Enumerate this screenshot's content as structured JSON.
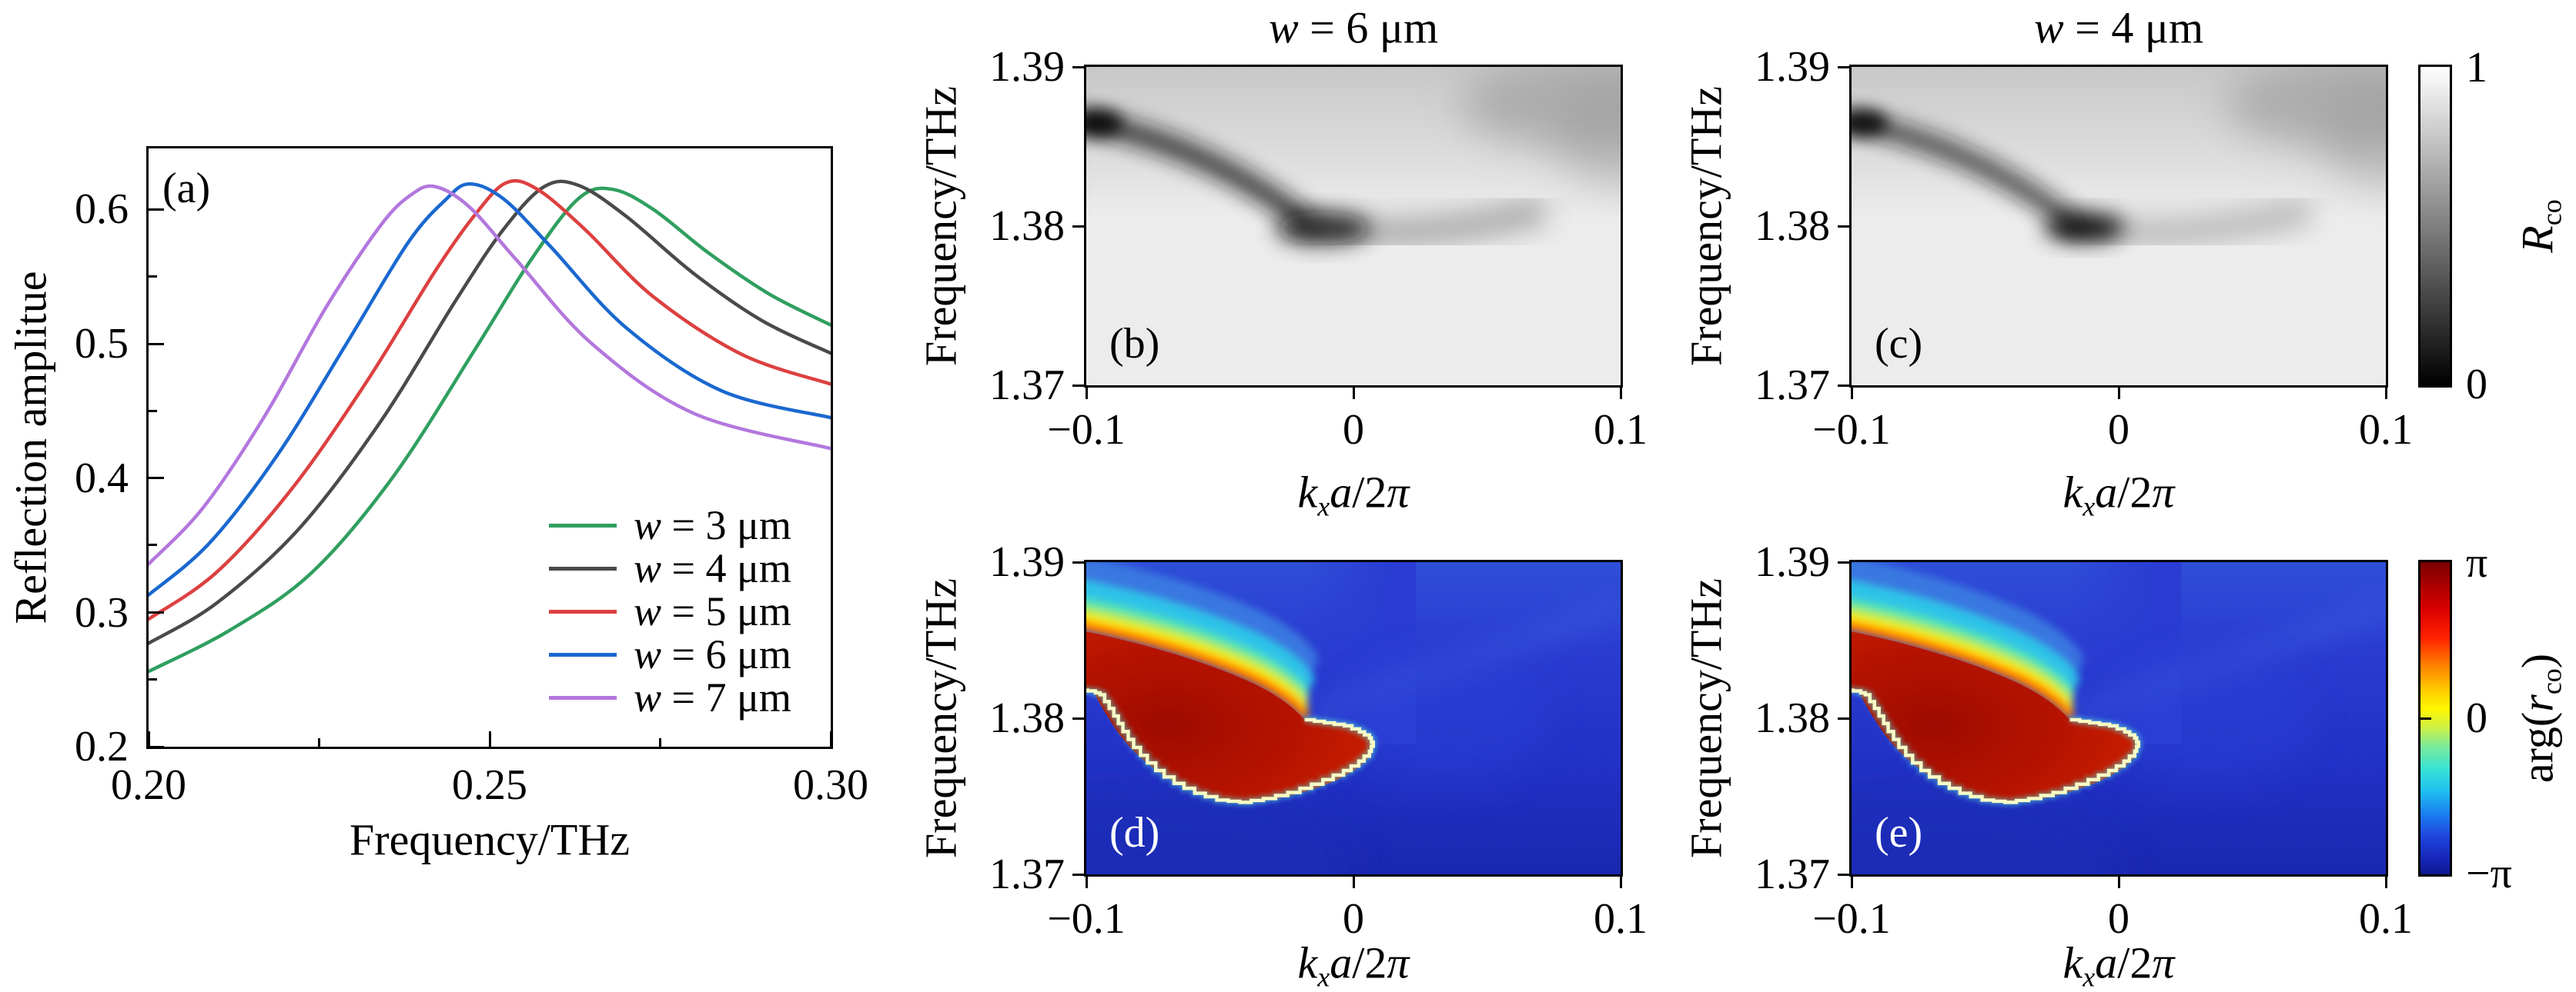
{
  "figure": {
    "panels": {
      "a": {
        "label": "(a)",
        "ylabel": "Reflection amplitue",
        "xlabel": "Frequency/THz",
        "axes": {
          "x": [
            {
              "f": 0,
              "t": "0.20"
            },
            {
              "f": 0.5,
              "t": "0.25"
            },
            {
              "f": 1,
              "t": "0.30"
            }
          ],
          "xm": [
            0.25,
            0.75
          ],
          "y": [
            {
              "f": 0.102,
              "t": "0.6"
            },
            {
              "f": 0.327,
              "t": "0.5"
            },
            {
              "f": 0.551,
              "t": "0.4"
            },
            {
              "f": 0.776,
              "t": "0.3"
            },
            {
              "f": 1,
              "t": "0.2"
            }
          ],
          "ym": [
            0.214,
            0.439,
            0.663,
            0.888
          ]
        },
        "legend": [
          {
            "parts": [
              {
                "t": "w",
                "s": "i"
              },
              {
                "t": " = 3 μm",
                "s": "r"
              }
            ]
          },
          {
            "parts": [
              {
                "t": "w",
                "s": "i"
              },
              {
                "t": " = 4 μm",
                "s": "r"
              }
            ]
          },
          {
            "parts": [
              {
                "t": "w",
                "s": "i"
              },
              {
                "t": " = 5 μm",
                "s": "r"
              }
            ]
          },
          {
            "parts": [
              {
                "t": "w",
                "s": "i"
              },
              {
                "t": " = 6 μm",
                "s": "r"
              }
            ]
          },
          {
            "parts": [
              {
                "t": "w",
                "s": "i"
              },
              {
                "t": " = 7 μm",
                "s": "r"
              }
            ]
          }
        ]
      },
      "b": {
        "label": "(b)",
        "title_parts": [
          {
            "t": "w",
            "s": "i"
          },
          {
            "t": " = 6 μm",
            "s": "r"
          }
        ],
        "ylabel": "Frequency/THz",
        "xlabel_parts": [
          {
            "t": "k",
            "s": "i"
          },
          {
            "t": "x",
            "s": "subi"
          },
          {
            "t": "a",
            "s": "i"
          },
          {
            "t": "/2",
            "s": "r"
          },
          {
            "t": "π",
            "s": "i"
          }
        ],
        "axes": {
          "x": [
            {
              "f": 0,
              "t": "−0.1"
            },
            {
              "f": 0.5,
              "t": "0"
            },
            {
              "f": 1,
              "t": "0.1"
            }
          ],
          "y": [
            {
              "f": 0,
              "t": "1.39"
            },
            {
              "f": 0.5,
              "t": "1.38"
            },
            {
              "f": 1,
              "t": "1.37"
            }
          ]
        }
      },
      "c": {
        "label": "(c)",
        "title_parts": [
          {
            "t": "w",
            "s": "i"
          },
          {
            "t": " = 4 μm",
            "s": "r"
          }
        ],
        "ylabel": "Frequency/THz",
        "xlabel_parts": [
          {
            "t": "k",
            "s": "i"
          },
          {
            "t": "x",
            "s": "subi"
          },
          {
            "t": "a",
            "s": "i"
          },
          {
            "t": "/2",
            "s": "r"
          },
          {
            "t": "π",
            "s": "i"
          }
        ],
        "axes": {
          "x": [
            {
              "f": 0,
              "t": "−0.1"
            },
            {
              "f": 0.5,
              "t": "0"
            },
            {
              "f": 1,
              "t": "0.1"
            }
          ],
          "y": [
            {
              "f": 0,
              "t": "1.39"
            },
            {
              "f": 0.5,
              "t": "1.38"
            },
            {
              "f": 1,
              "t": "1.37"
            }
          ]
        }
      },
      "d": {
        "label": "(d)",
        "ylabel": "Frequency/THz",
        "xlabel_parts": [
          {
            "t": "k",
            "s": "i"
          },
          {
            "t": "x",
            "s": "subi"
          },
          {
            "t": "a",
            "s": "i"
          },
          {
            "t": "/2",
            "s": "r"
          },
          {
            "t": "π",
            "s": "i"
          }
        ],
        "axes": {
          "x": [
            {
              "f": 0,
              "t": "−0.1"
            },
            {
              "f": 0.5,
              "t": "0"
            },
            {
              "f": 1,
              "t": "0.1"
            }
          ],
          "y": [
            {
              "f": 0,
              "t": "1.39"
            },
            {
              "f": 0.5,
              "t": "1.38"
            },
            {
              "f": 1,
              "t": "1.37"
            }
          ]
        }
      },
      "e": {
        "label": "(e)",
        "ylabel": "Frequency/THz",
        "xlabel_parts": [
          {
            "t": "k",
            "s": "i"
          },
          {
            "t": "x",
            "s": "subi"
          },
          {
            "t": "a",
            "s": "i"
          },
          {
            "t": "/2",
            "s": "r"
          },
          {
            "t": "π",
            "s": "i"
          }
        ],
        "axes": {
          "x": [
            {
              "f": 0,
              "t": "−0.1"
            },
            {
              "f": 0.5,
              "t": "0"
            },
            {
              "f": 1,
              "t": "0.1"
            }
          ],
          "y": [
            {
              "f": 0,
              "t": "1.39"
            },
            {
              "f": 0.5,
              "t": "1.38"
            },
            {
              "f": 1,
              "t": "1.37"
            }
          ]
        }
      }
    },
    "colorbars": [
      {
        "ticks": [
          "1",
          "0"
        ],
        "label_parts": [
          {
            "t": "R",
            "s": "i"
          },
          {
            "t": "co",
            "s": "subr"
          }
        ]
      },
      {
        "ticks": [
          "π",
          "0",
          "−π"
        ],
        "label_parts": [
          {
            "t": "arg(",
            "s": "r"
          },
          {
            "t": "r",
            "s": "i"
          },
          {
            "t": "co",
            "s": "subr"
          },
          {
            "t": ")",
            "s": "r"
          }
        ]
      }
    ]
  },
  "chart_data": [
    {
      "id": "a",
      "type": "line",
      "xlabel": "Frequency/THz",
      "ylabel": "Reflection amplitue",
      "xlim": [
        0.2,
        0.3
      ],
      "ylim": [
        0.2,
        0.645
      ],
      "x_ticks": [
        0.2,
        0.25,
        0.3
      ],
      "y_ticks": [
        0.2,
        0.3,
        0.4,
        0.5,
        0.6
      ],
      "legend_position": "lower right",
      "series": [
        {
          "name": "w = 3 μm",
          "color": "#2f9f5f",
          "points": [
            [
              0.2,
              0.256
            ],
            [
              0.212,
              0.287
            ],
            [
              0.224,
              0.33
            ],
            [
              0.236,
              0.402
            ],
            [
              0.248,
              0.497
            ],
            [
              0.256,
              0.562
            ],
            [
              0.263,
              0.608
            ],
            [
              0.268,
              0.615
            ],
            [
              0.274,
              0.6
            ],
            [
              0.282,
              0.568
            ],
            [
              0.291,
              0.537
            ],
            [
              0.3,
              0.514
            ]
          ]
        },
        {
          "name": "w = 4 μm",
          "color": "#4a4a4a",
          "points": [
            [
              0.2,
              0.277
            ],
            [
              0.21,
              0.307
            ],
            [
              0.222,
              0.362
            ],
            [
              0.234,
              0.442
            ],
            [
              0.245,
              0.532
            ],
            [
              0.252,
              0.585
            ],
            [
              0.258,
              0.617
            ],
            [
              0.263,
              0.618
            ],
            [
              0.27,
              0.595
            ],
            [
              0.28,
              0.552
            ],
            [
              0.29,
              0.517
            ],
            [
              0.3,
              0.493
            ]
          ]
        },
        {
          "name": "w = 5 μm",
          "color": "#dd4040",
          "points": [
            [
              0.2,
              0.295
            ],
            [
              0.21,
              0.33
            ],
            [
              0.221,
              0.392
            ],
            [
              0.232,
              0.472
            ],
            [
              0.242,
              0.554
            ],
            [
              0.248,
              0.597
            ],
            [
              0.2525,
              0.62
            ],
            [
              0.257,
              0.615
            ],
            [
              0.264,
              0.585
            ],
            [
              0.274,
              0.535
            ],
            [
              0.287,
              0.492
            ],
            [
              0.3,
              0.47
            ]
          ]
        },
        {
          "name": "w = 6 μm",
          "color": "#1a68d0",
          "points": [
            [
              0.2,
              0.313
            ],
            [
              0.209,
              0.352
            ],
            [
              0.219,
              0.418
            ],
            [
              0.229,
              0.5
            ],
            [
              0.238,
              0.575
            ],
            [
              0.2435,
              0.607
            ],
            [
              0.247,
              0.619
            ],
            [
              0.252,
              0.608
            ],
            [
              0.259,
              0.572
            ],
            [
              0.27,
              0.512
            ],
            [
              0.284,
              0.465
            ],
            [
              0.3,
              0.445
            ]
          ]
        },
        {
          "name": "w = 7 μm",
          "color": "#b377dd",
          "points": [
            [
              0.2,
              0.336
            ],
            [
              0.208,
              0.378
            ],
            [
              0.217,
              0.446
            ],
            [
              0.226,
              0.527
            ],
            [
              0.234,
              0.588
            ],
            [
              0.2385,
              0.611
            ],
            [
              0.242,
              0.617
            ],
            [
              0.247,
              0.602
            ],
            [
              0.254,
              0.562
            ],
            [
              0.265,
              0.5
            ],
            [
              0.28,
              0.448
            ],
            [
              0.3,
              0.422
            ]
          ]
        }
      ]
    },
    {
      "id": "b",
      "type": "heatmap",
      "title": "w = 6 μm",
      "xlabel": "k_x a/2π",
      "ylabel": "Frequency/THz",
      "xlim": [
        -0.1,
        0.1
      ],
      "ylim": [
        1.37,
        1.39
      ],
      "x_ticks": [
        -0.1,
        0,
        0.1
      ],
      "y_ticks": [
        1.37,
        1.38,
        1.39
      ],
      "colormap": "grayscale (white = 1, black = 0)",
      "colorbar": {
        "label": "R_co",
        "range": [
          0,
          1
        ]
      },
      "features": [
        "light gray background R_co ≈ 0.9",
        "dark low-reflection band entering at left edge near 1.386 THz, dipping to minimum R_co ≈ 0 near k_xa/2π ≈ −0.015, f ≈ 1.3795 THz, fading toward positive k_x",
        "faint dark shading descending from the top-right corner"
      ]
    },
    {
      "id": "c",
      "type": "heatmap",
      "title": "w = 4 μm",
      "xlabel": "k_x a/2π",
      "ylabel": "Frequency/THz",
      "xlim": [
        -0.1,
        0.1
      ],
      "ylim": [
        1.37,
        1.39
      ],
      "x_ticks": [
        -0.1,
        0,
        0.1
      ],
      "y_ticks": [
        1.37,
        1.38,
        1.39
      ],
      "colormap": "grayscale (white = 1, black = 0)",
      "colorbar": {
        "label": "R_co",
        "range": [
          0,
          1
        ]
      },
      "features": [
        "same dispersive dark band as panel (b) but with a sharper, darker minimum near k_xa/2π ≈ −0.01, f ≈ 1.3795 THz"
      ]
    },
    {
      "id": "d",
      "type": "heatmap",
      "xlabel": "k_x a/2π",
      "ylabel": "Frequency/THz",
      "xlim": [
        -0.1,
        0.1
      ],
      "ylim": [
        1.37,
        1.39
      ],
      "x_ticks": [
        -0.1,
        0,
        0.1
      ],
      "y_ticks": [
        1.37,
        1.38,
        1.39
      ],
      "colormap": "jet phase map",
      "colorbar": {
        "label": "arg(r_co)",
        "range": [
          "−π",
          "π"
        ]
      },
      "features": [
        "mostly blue background (phase near −π/2 … −π)",
        "red tongue (phase ≈ +π) from left edge between ≈1.3815 and ≈1.3855 THz, narrowing to a tip near k_xa/2π ≈ +0.01, f ≈ 1.3785 THz",
        "lower/right boundary is a sharp ±π phase wrap with a thin pale-yellow pixelated edge",
        "smooth rainbow gradient red→orange→yellow→green→cyan→blue above the upper boundary",
        "phase singularity near k_xa/2π ≈ −0.02, f ≈ 1.380 THz"
      ]
    },
    {
      "id": "e",
      "type": "heatmap",
      "xlabel": "k_x a/2π",
      "ylabel": "Frequency/THz",
      "xlim": [
        -0.1,
        0.1
      ],
      "ylim": [
        1.37,
        1.39
      ],
      "x_ticks": [
        -0.1,
        0,
        0.1
      ],
      "y_ticks": [
        1.37,
        1.38,
        1.39
      ],
      "colormap": "jet phase map",
      "colorbar": {
        "label": "arg(r_co)",
        "range": [
          "−π",
          "π"
        ]
      },
      "features": [
        "phase map nearly identical to panel (d): red +π tongue with pale pixelated phase-wrap border and vortex near k_xa/2π ≈ −0.02, f ≈ 1.380 THz"
      ]
    }
  ]
}
